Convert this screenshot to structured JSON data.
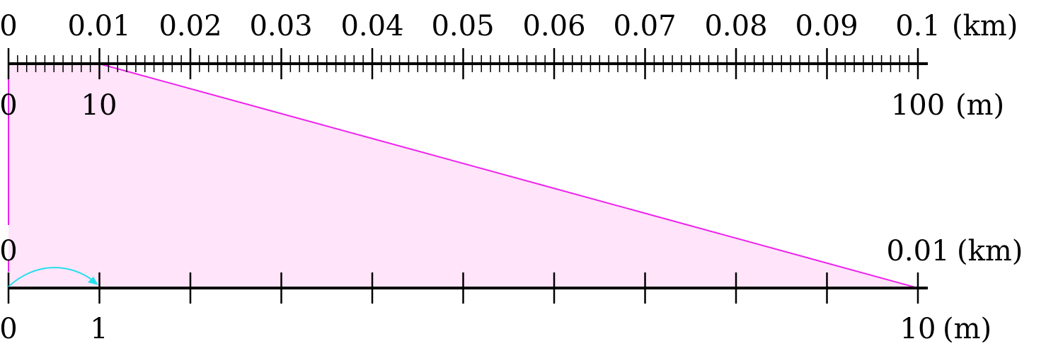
{
  "colors": {
    "ink": "#000000",
    "zoom_fill": "#ffe4fa",
    "zoom_line": "#ee22ee",
    "arrow": "#22e0ee"
  },
  "top_scale": {
    "km_labels": [
      "0",
      "0.01",
      "0.02",
      "0.03",
      "0.04",
      "0.05",
      "0.06",
      "0.07",
      "0.08",
      "0.09",
      "0.1"
    ],
    "km_unit": "(km)",
    "m_labels": [
      "0",
      "10"
    ],
    "m_end_label": "100",
    "m_unit": "(m)",
    "major_divisions": 10,
    "minor_per_major": 10
  },
  "bottom_scale": {
    "km_start": "0",
    "km_end": "0.01",
    "km_unit": "(km)",
    "m_start": "0",
    "m_second": "1",
    "m_end": "10",
    "m_unit": "(m)",
    "divisions": 10
  },
  "hop_arrow": {
    "from_division": 0,
    "to_division": 1
  }
}
